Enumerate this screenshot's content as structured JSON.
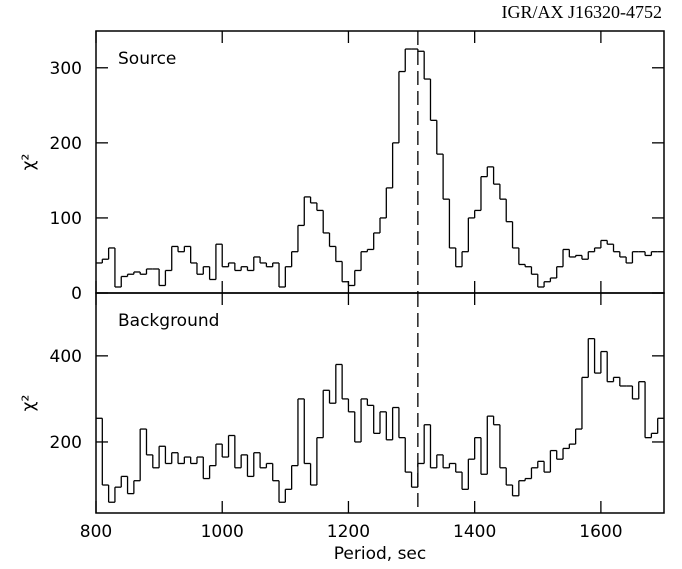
{
  "chart_data": [
    {
      "type": "histogram",
      "title": "IGR/AX J16320-4752",
      "panel_label": "Source",
      "ylabel": "χ²",
      "bins": [
        800,
        810,
        820,
        830,
        840,
        850,
        860,
        870,
        880,
        890,
        900,
        910,
        920,
        930,
        940,
        950,
        960,
        970,
        980,
        990,
        1000,
        1010,
        1020,
        1030,
        1040,
        1050,
        1060,
        1070,
        1080,
        1090,
        1100,
        1110,
        1120,
        1130,
        1140,
        1150,
        1160,
        1170,
        1180,
        1190,
        1200,
        1210,
        1220,
        1230,
        1240,
        1250,
        1260,
        1270,
        1280,
        1290,
        1300,
        1310,
        1320,
        1330,
        1340,
        1350,
        1360,
        1370,
        1380,
        1390,
        1400,
        1410,
        1420,
        1430,
        1440,
        1450,
        1460,
        1470,
        1480,
        1490,
        1500,
        1510,
        1520,
        1530,
        1540,
        1550,
        1560,
        1570,
        1580,
        1590,
        1600,
        1610,
        1620,
        1630,
        1640,
        1650,
        1660,
        1670,
        1680,
        1690,
        1700
      ],
      "values": [
        40,
        45,
        60,
        8,
        22,
        25,
        28,
        25,
        32,
        32,
        10,
        30,
        62,
        55,
        62,
        40,
        25,
        35,
        18,
        65,
        35,
        40,
        30,
        35,
        30,
        48,
        40,
        35,
        40,
        8,
        35,
        55,
        90,
        128,
        120,
        110,
        80,
        62,
        42,
        15,
        10,
        30,
        55,
        58,
        80,
        100,
        140,
        200,
        295,
        325,
        325,
        322,
        285,
        230,
        185,
        125,
        60,
        35,
        55,
        100,
        110,
        155,
        168,
        145,
        125,
        95,
        60,
        38,
        35,
        25,
        8,
        15,
        20,
        35,
        58,
        48,
        50,
        45,
        55,
        60,
        70,
        65,
        55,
        48,
        40,
        55,
        55,
        50,
        55,
        55
      ],
      "color": "#000000",
      "marker_x": 1310,
      "xlim": [
        800,
        1700
      ],
      "ylim": [
        0,
        349
      ],
      "xticks": [
        800,
        1000,
        1200,
        1400,
        1600
      ],
      "yticks": [
        0,
        100,
        200,
        300
      ],
      "show_xtick_labels": false
    },
    {
      "type": "histogram",
      "panel_label": "Background",
      "ylabel": "χ²",
      "xlabel": "Period, sec",
      "bins": [
        800,
        810,
        820,
        830,
        840,
        850,
        860,
        870,
        880,
        890,
        900,
        910,
        920,
        930,
        940,
        950,
        960,
        970,
        980,
        990,
        1000,
        1010,
        1020,
        1030,
        1040,
        1050,
        1060,
        1070,
        1080,
        1090,
        1100,
        1110,
        1120,
        1130,
        1140,
        1150,
        1160,
        1170,
        1180,
        1190,
        1200,
        1210,
        1220,
        1230,
        1240,
        1250,
        1260,
        1270,
        1280,
        1290,
        1300,
        1310,
        1320,
        1330,
        1340,
        1350,
        1360,
        1370,
        1380,
        1390,
        1400,
        1410,
        1420,
        1430,
        1440,
        1450,
        1460,
        1470,
        1480,
        1490,
        1500,
        1510,
        1520,
        1530,
        1540,
        1550,
        1560,
        1570,
        1580,
        1590,
        1600,
        1610,
        1620,
        1630,
        1640,
        1650,
        1660,
        1670,
        1680,
        1690,
        1700
      ],
      "values": [
        255,
        100,
        60,
        95,
        120,
        80,
        110,
        230,
        170,
        140,
        190,
        150,
        175,
        150,
        165,
        150,
        165,
        115,
        145,
        195,
        165,
        215,
        140,
        170,
        120,
        175,
        140,
        150,
        110,
        60,
        90,
        145,
        300,
        150,
        100,
        210,
        320,
        290,
        380,
        300,
        270,
        200,
        300,
        285,
        220,
        270,
        205,
        280,
        210,
        130,
        95,
        150,
        240,
        140,
        170,
        140,
        150,
        130,
        90,
        160,
        210,
        125,
        260,
        240,
        140,
        100,
        75,
        110,
        115,
        140,
        155,
        130,
        180,
        160,
        185,
        195,
        230,
        350,
        440,
        360,
        410,
        340,
        350,
        330,
        330,
        300,
        340,
        210,
        220,
        255
      ],
      "color": "#000000",
      "marker_x": 1310,
      "xlim": [
        800,
        1700
      ],
      "ylim": [
        35,
        546
      ],
      "xticks": [
        800,
        1000,
        1200,
        1400,
        1600
      ],
      "yticks": [
        200,
        400
      ],
      "show_xtick_labels": true
    }
  ]
}
